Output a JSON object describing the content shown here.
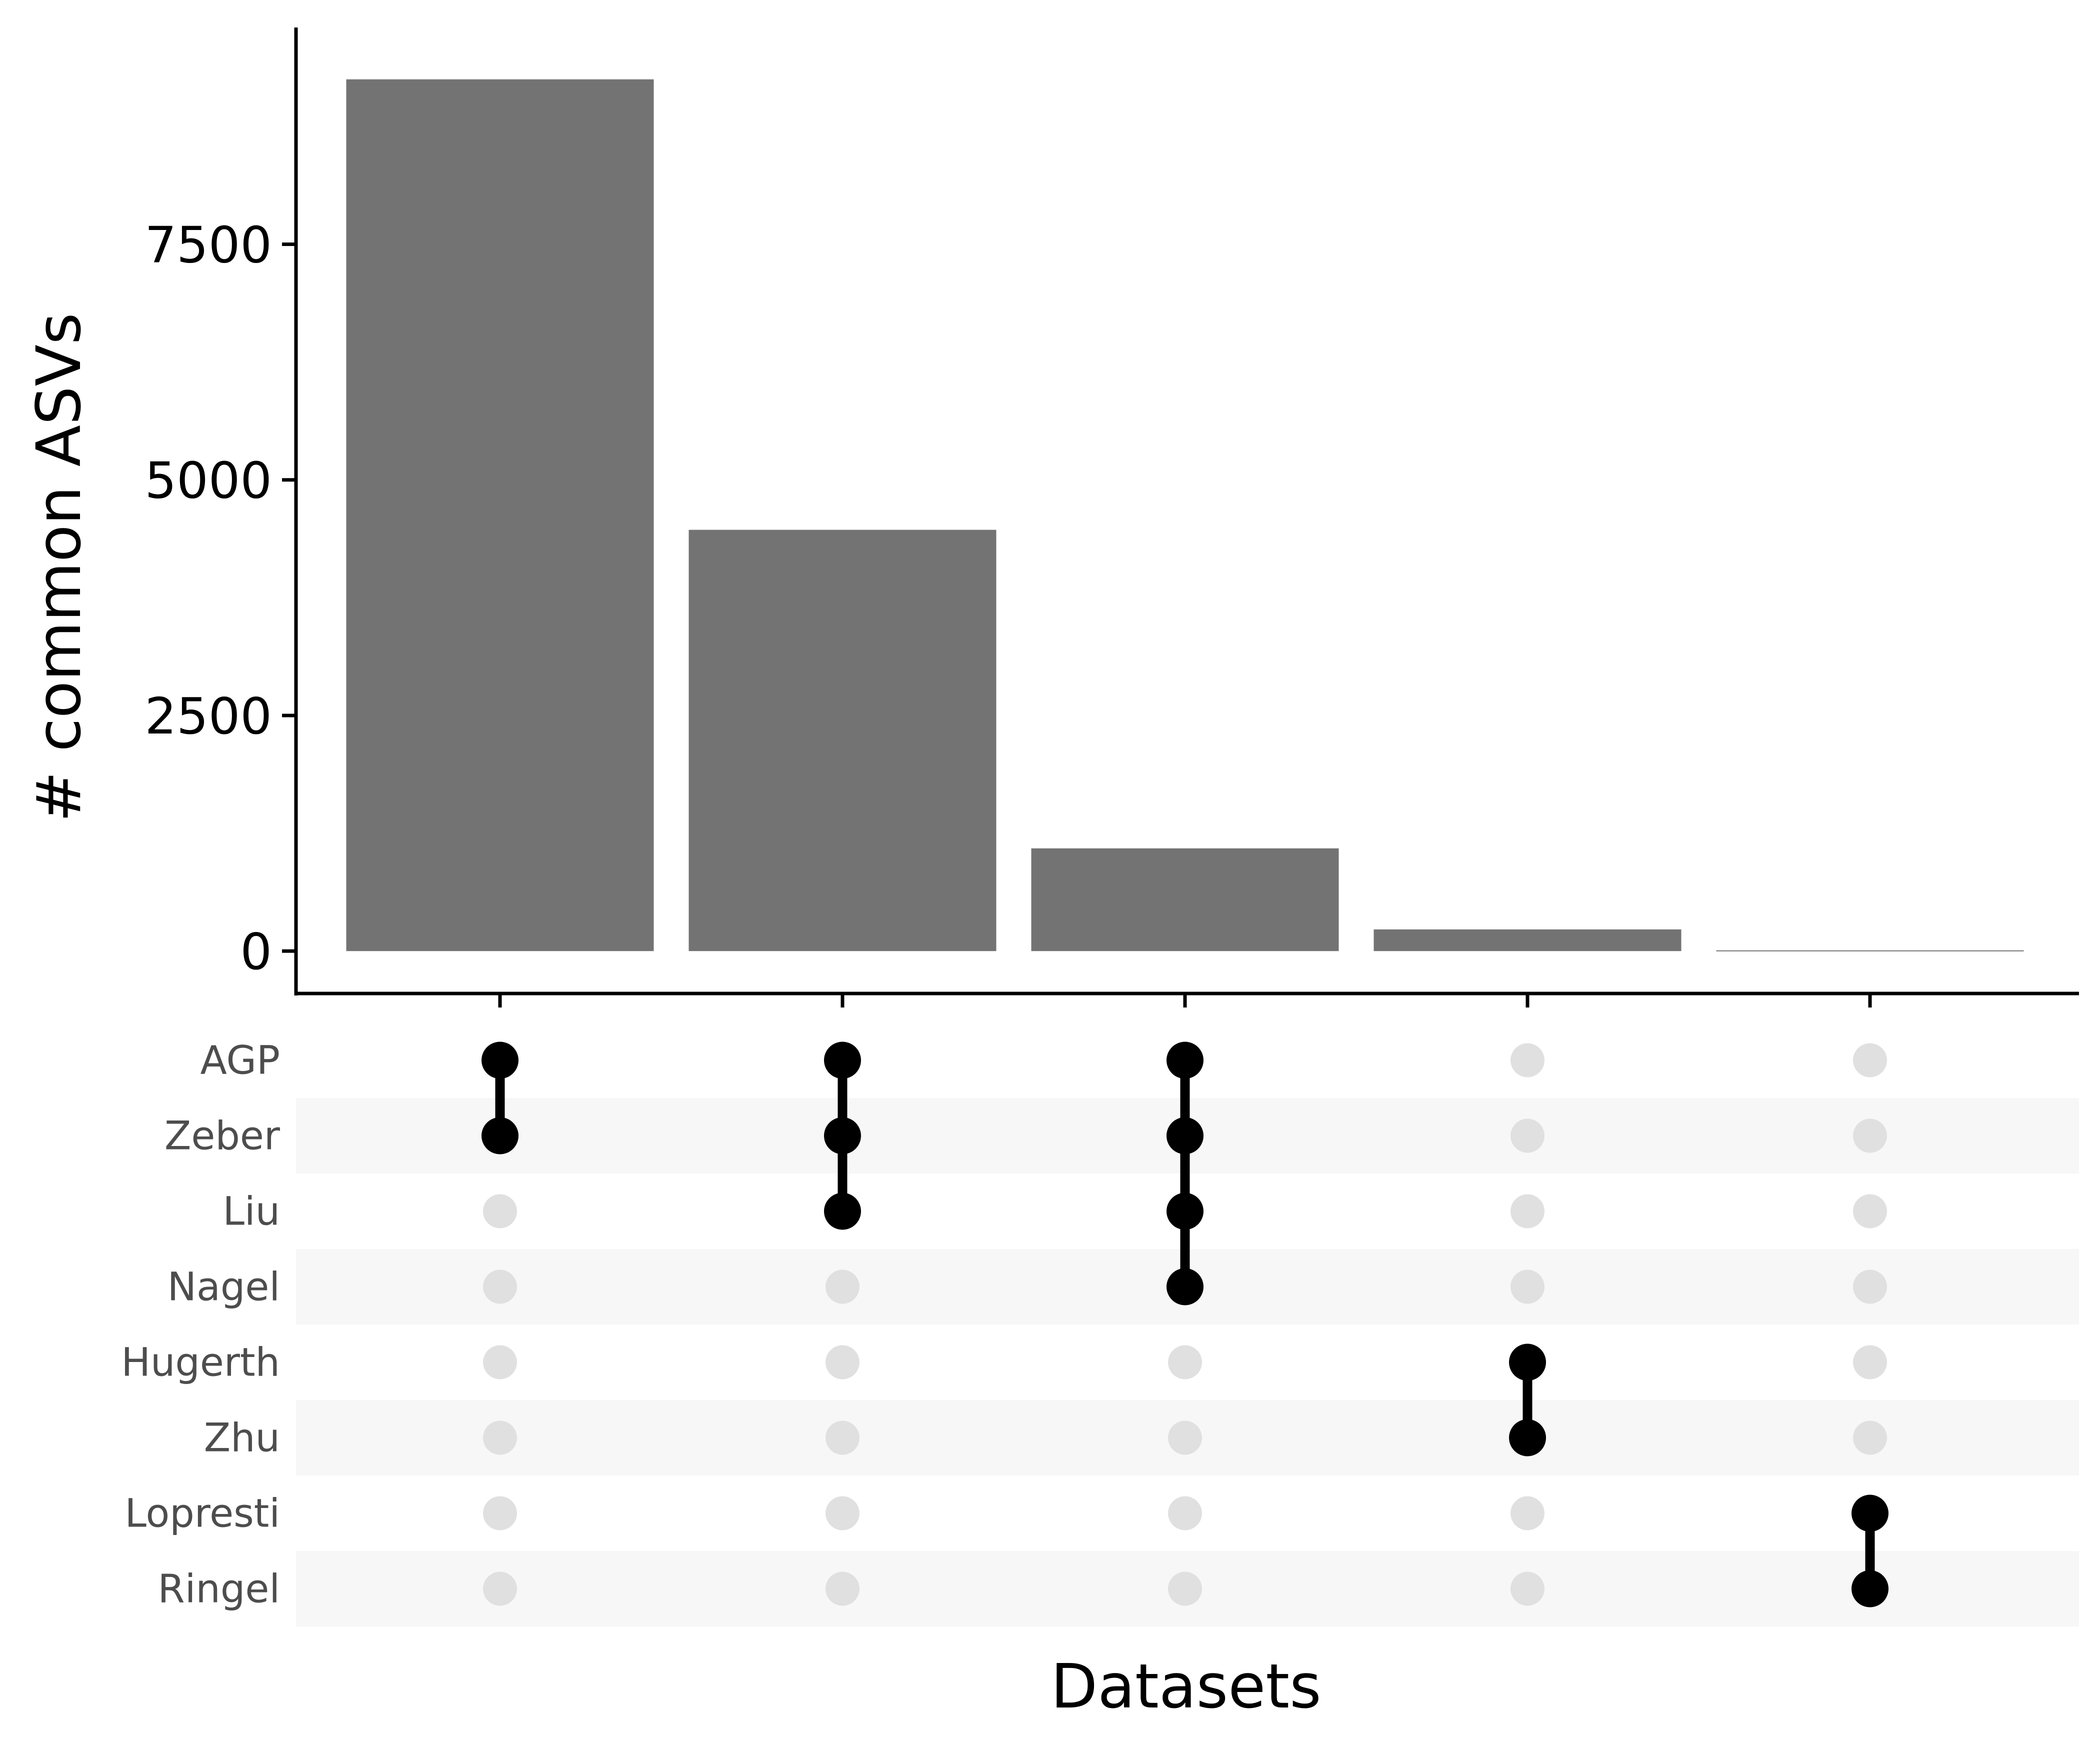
{
  "chart_data": {
    "type": "bar",
    "ylabel": "# common ASVs",
    "xlabel": "Datasets",
    "ylim": [
      -450,
      9800
    ],
    "y_ticks": [
      0,
      2500,
      5000,
      7500
    ],
    "y_tick_labels": [
      "0",
      "2500",
      "5000",
      "7500"
    ],
    "bar_color": "#737373",
    "sets": [
      "AGP",
      "Zeber",
      "Liu",
      "Nagel",
      "Hugerth",
      "Zhu",
      "Lopresti",
      "Ringel"
    ],
    "intersections": [
      {
        "members": [
          "AGP",
          "Zeber"
        ],
        "value": 9250
      },
      {
        "members": [
          "AGP",
          "Zeber",
          "Liu"
        ],
        "value": 4470
      },
      {
        "members": [
          "AGP",
          "Zeber",
          "Liu",
          "Nagel"
        ],
        "value": 1090
      },
      {
        "members": [
          "Hugerth",
          "Zhu"
        ],
        "value": 230
      },
      {
        "members": [
          "Lopresti",
          "Ringel"
        ],
        "value": 8
      }
    ],
    "active_dot_color": "#000000",
    "inactive_dot_color": "#e0e0e0",
    "stripe_color": "#f7f7f7",
    "grid": false
  }
}
